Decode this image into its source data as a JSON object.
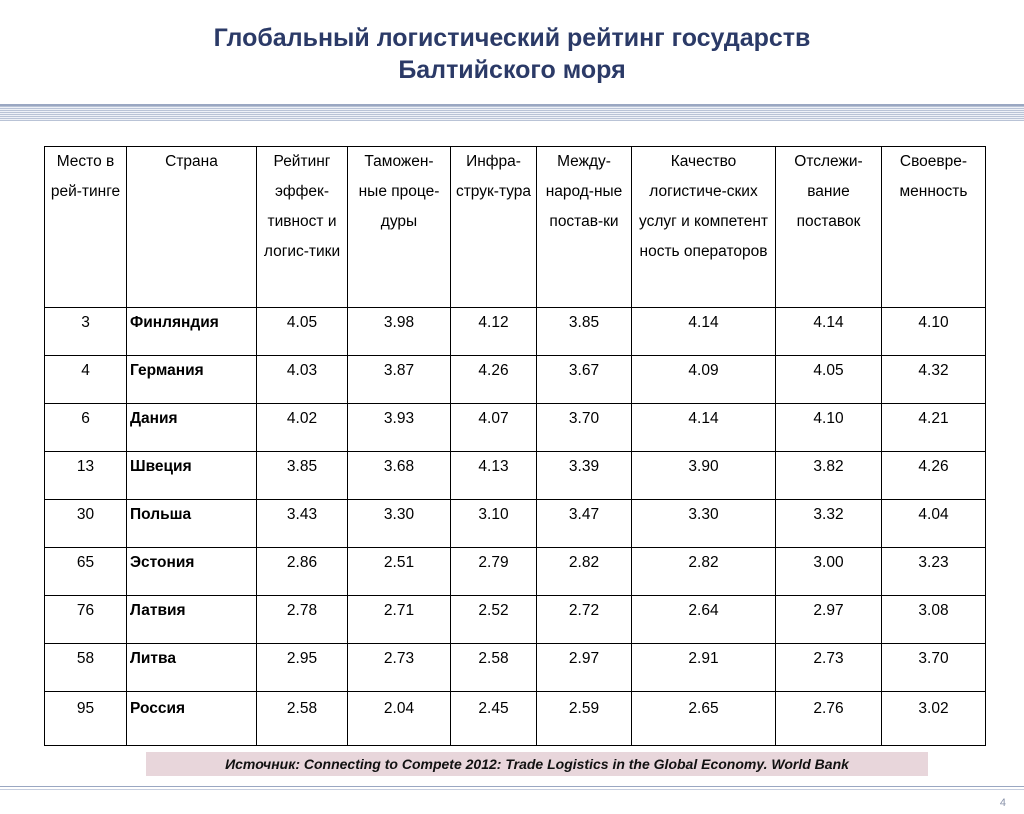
{
  "slide": {
    "title_line1": "Глобальный логистический рейтинг государств",
    "title_line2": "Балтийского моря",
    "source": "Источник: Connecting to Compete 2012: Trade Logistics in the Global Economy. World Bank",
    "page_number": "4"
  },
  "table": {
    "headers": [
      "Место в рей-тинге",
      "Страна",
      "Рейтинг эффек-тивност и логис-тики",
      "Таможен-ные проце-дуры",
      "Инфра-струк-тура",
      "Между-народ-ные постав-ки",
      "Качество логистиче-ских услуг и компетент ность операторов",
      "Отслежи-вание поставок",
      "Своевре-менность"
    ],
    "rows": [
      [
        "3",
        "Финляндия",
        "4.05",
        "3.98",
        "4.12",
        "3.85",
        "4.14",
        "4.14",
        "4.10"
      ],
      [
        "4",
        "Германия",
        "4.03",
        "3.87",
        "4.26",
        "3.67",
        "4.09",
        "4.05",
        "4.32"
      ],
      [
        "6",
        "Дания",
        "4.02",
        "3.93",
        "4.07",
        "3.70",
        "4.14",
        "4.10",
        "4.21"
      ],
      [
        "13",
        "Швеция",
        "3.85",
        "3.68",
        "4.13",
        "3.39",
        "3.90",
        "3.82",
        "4.26"
      ],
      [
        "30",
        "Польша",
        "3.43",
        "3.30",
        "3.10",
        "3.47",
        "3.30",
        "3.32",
        "4.04"
      ],
      [
        "65",
        "Эстония",
        "2.86",
        "2.51",
        "2.79",
        "2.82",
        "2.82",
        "3.00",
        "3.23"
      ],
      [
        "76",
        "Латвия",
        "2.78",
        "2.71",
        "2.52",
        "2.72",
        "2.64",
        "2.97",
        "3.08"
      ],
      [
        "58",
        "Литва",
        "2.95",
        "2.73",
        "2.58",
        "2.97",
        "2.91",
        "2.73",
        "3.70"
      ],
      [
        "95",
        "Россия",
        "2.58",
        "2.04",
        "2.45",
        "2.59",
        "2.65",
        "2.76",
        "3.02"
      ]
    ]
  }
}
